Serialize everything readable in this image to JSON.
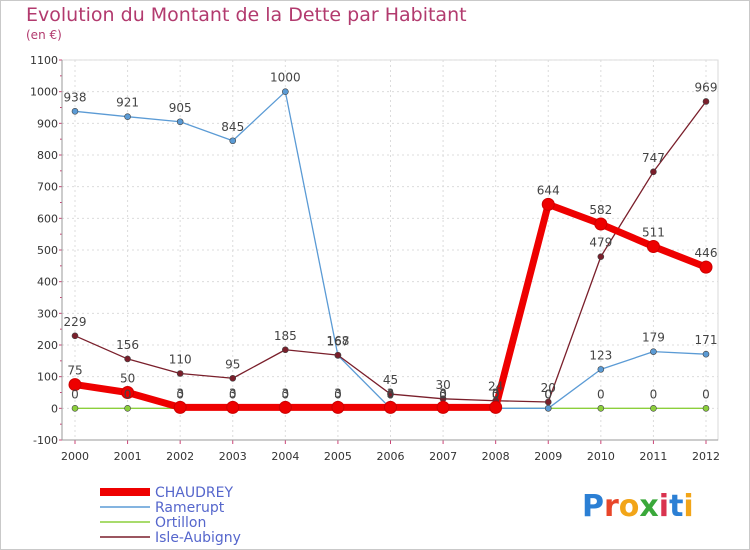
{
  "title": "Evolution du Montant de la Dette par Habitant",
  "subtitle": "(en €)",
  "logo": "Proxiti",
  "chart_data": {
    "type": "line",
    "x": [
      2000,
      2001,
      2002,
      2003,
      2004,
      2005,
      2006,
      2007,
      2008,
      2009,
      2010,
      2011,
      2012
    ],
    "ylim": [
      -100,
      1100
    ],
    "yticks": [
      -100,
      0,
      100,
      200,
      300,
      400,
      500,
      600,
      700,
      800,
      900,
      1000,
      1100
    ],
    "grid": true,
    "legend": "bottom-left",
    "series": [
      {
        "name": "CHAUDREY",
        "color": "#ee0000",
        "values": [
          75,
          50,
          3,
          3,
          3,
          3,
          3,
          3,
          3,
          644,
          582,
          511,
          446
        ],
        "labels": [
          "75",
          "50",
          "3",
          "3",
          "3",
          "3",
          "3",
          "3",
          "3",
          "644",
          "582",
          "511",
          "446"
        ]
      },
      {
        "name": "Ramerupt",
        "color": "#5b9bd5",
        "values": [
          938,
          921,
          905,
          845,
          1000,
          167,
          0,
          0,
          0,
          0,
          123,
          179,
          171
        ],
        "labels": [
          "938",
          "921",
          "905",
          "845",
          "1000",
          "167",
          "0",
          "0",
          "0",
          "0",
          "123",
          "179",
          "171"
        ]
      },
      {
        "name": "Ortillon",
        "color": "#8ccf3c",
        "values": [
          0,
          0,
          0,
          0,
          0,
          0,
          0,
          0,
          0,
          0,
          0,
          0,
          0
        ],
        "labels": [
          "0",
          "0",
          "0",
          "0",
          "0",
          "0",
          "0",
          "0",
          "0",
          "0",
          "0",
          "0",
          "0"
        ]
      },
      {
        "name": "Isle-Aubigny",
        "color": "#7a1f2b",
        "values": [
          229,
          156,
          110,
          95,
          185,
          168,
          45,
          30,
          24,
          20,
          479,
          747,
          969
        ],
        "labels": [
          "229",
          "156",
          "110",
          "95",
          "185",
          "168",
          "45",
          "30",
          "24",
          "20",
          "479",
          "747",
          "969"
        ]
      }
    ]
  }
}
